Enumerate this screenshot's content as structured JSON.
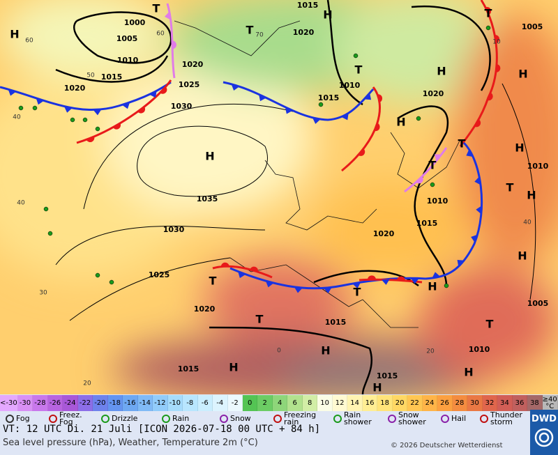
{
  "map": {
    "isobar_labels": [
      1000,
      1005,
      1010,
      1015,
      1020,
      1030,
      1035,
      1030,
      1025,
      1020,
      1015,
      1025,
      1020,
      1015,
      1020,
      1010,
      1015,
      1020,
      1005,
      1010,
      1010,
      1015,
      1020,
      1015,
      1005,
      1010,
      1015
    ],
    "temperature_labels": [
      60,
      50,
      40,
      40,
      30,
      20,
      0,
      20,
      40,
      60,
      70,
      10
    ],
    "high_labels": [
      "H",
      "H",
      "H",
      "H",
      "H",
      "H",
      "H",
      "H",
      "H",
      "H",
      "H",
      "H",
      "H",
      "H"
    ],
    "low_labels": [
      "T",
      "T",
      "T",
      "T",
      "T",
      "T",
      "T",
      "T",
      "T",
      "T",
      "T"
    ]
  },
  "legend": {
    "temperature_scale": [
      {
        "label": "<-30",
        "color": "#e4a8ff"
      },
      {
        "label": "-30",
        "color": "#d890f5"
      },
      {
        "label": "-28",
        "color": "#c878ec"
      },
      {
        "label": "-26",
        "color": "#b864e0"
      },
      {
        "label": "-24",
        "color": "#a858d8"
      },
      {
        "label": "-22",
        "color": "#8c6ee8"
      },
      {
        "label": "-20",
        "color": "#6e82ec"
      },
      {
        "label": "-18",
        "color": "#6494f0"
      },
      {
        "label": "-16",
        "color": "#6ea8f2"
      },
      {
        "label": "-14",
        "color": "#80baf6"
      },
      {
        "label": "-12",
        "color": "#92ccfa"
      },
      {
        "label": "-10",
        "color": "#a6dcfc"
      },
      {
        "label": "-8",
        "color": "#b8e6fe"
      },
      {
        "label": "-6",
        "color": "#caeefe"
      },
      {
        "label": "-4",
        "color": "#dcf4fe"
      },
      {
        "label": "-2",
        "color": "#ecf9fe"
      },
      {
        "label": "0",
        "color": "#54c454"
      },
      {
        "label": "2",
        "color": "#6ccc64"
      },
      {
        "label": "4",
        "color": "#8ed67a"
      },
      {
        "label": "6",
        "color": "#b2e28e"
      },
      {
        "label": "8",
        "color": "#d2eea6"
      },
      {
        "label": "10",
        "color": "#fbfde6"
      },
      {
        "label": "12",
        "color": "#fffad2"
      },
      {
        "label": "14",
        "color": "#fff4b2"
      },
      {
        "label": "16",
        "color": "#ffee94"
      },
      {
        "label": "18",
        "color": "#ffe47a"
      },
      {
        "label": "20",
        "color": "#ffd864"
      },
      {
        "label": "22",
        "color": "#ffc652"
      },
      {
        "label": "24",
        "color": "#ffb448"
      },
      {
        "label": "26",
        "color": "#fca040"
      },
      {
        "label": "28",
        "color": "#f48c40"
      },
      {
        "label": "30",
        "color": "#ea7844"
      },
      {
        "label": "32",
        "color": "#e0664c"
      },
      {
        "label": "34",
        "color": "#d25e56"
      },
      {
        "label": "36",
        "color": "#c0605e"
      },
      {
        "label": "38",
        "color": "#a46868"
      },
      {
        "label": "≥40 °C",
        "color": "#b8b8b8"
      }
    ],
    "weather": [
      "Fog",
      "Freez. Fog",
      "Drizzle",
      "Rain",
      "Snow",
      "Freezing rain",
      "Rain shower",
      "Snow shower",
      "Hail",
      "Thunder storm"
    ]
  },
  "footer": {
    "valid_time": "VT: 12 UTC Di.  21 Juli [ICON 2026-07-18  00 UTC + 84 h]",
    "description": "Sea level pressure (hPa), Weather, Temperature 2m (°C)",
    "copyright": "© 2026 Deutscher Wetterdienst",
    "logo": "DWD"
  }
}
